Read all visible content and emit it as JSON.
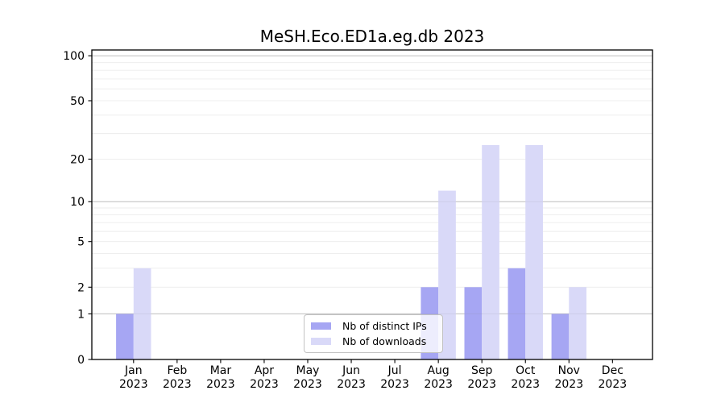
{
  "chart_data": {
    "type": "bar",
    "title": "MeSH.Eco.ED1a.eg.db 2023",
    "categories": [
      "Jan",
      "Feb",
      "Mar",
      "Apr",
      "May",
      "Jun",
      "Jul",
      "Aug",
      "Sep",
      "Oct",
      "Nov",
      "Dec"
    ],
    "x_year": "2023",
    "series": [
      {
        "name": "Nb of distinct IPs",
        "color": "#a6a6f3",
        "values": [
          1,
          0,
          0,
          0,
          0,
          0,
          0,
          2,
          2,
          3,
          1,
          0
        ]
      },
      {
        "name": "Nb of downloads",
        "color": "#d9d9f8",
        "values": [
          3,
          0,
          0,
          0,
          0,
          0,
          0,
          12,
          25,
          25,
          2,
          0
        ]
      }
    ],
    "y_ticks": [
      0,
      1,
      2,
      5,
      10,
      20,
      50,
      100
    ],
    "y_minor_gridlines": [
      2,
      3,
      4,
      5,
      6,
      7,
      8,
      9,
      20,
      30,
      40,
      50,
      60,
      70,
      80,
      90
    ],
    "y_major_gridlines": [
      1,
      10,
      100
    ],
    "y_scale": "log1p",
    "ylim": [
      0,
      110
    ],
    "grid": true,
    "legend_position": "lower-center",
    "colors": {
      "background": "#ffffff",
      "grid_minor": "#ececec",
      "grid_major": "#c8c8c8",
      "spine": "#000000"
    }
  }
}
